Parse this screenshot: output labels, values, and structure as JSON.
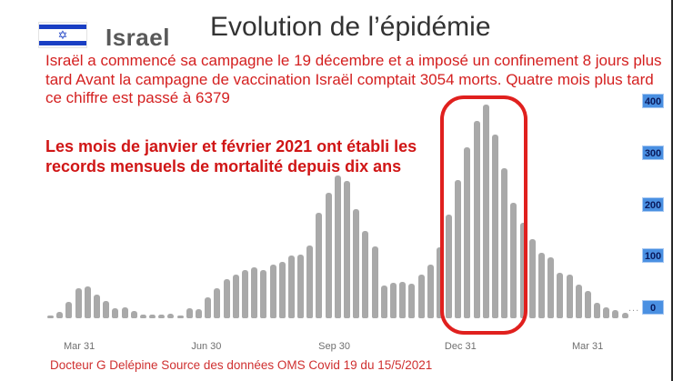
{
  "header": {
    "country_label": "Israel",
    "flag": "israel-flag",
    "title": "Evolution de l’épidémie"
  },
  "intro_paragraph": "Israël a commencé sa campagne le 19 décembre et a imposé un confinement 8 jours plus tard Avant la campagne de vaccination Israël comptait 3054 morts. Quatre mois plus tard ce chiffre est passé à  6379",
  "highlight_statement": "Les mois de janvier et février 2021 ont établi les records mensuels de mortalité depuis dix ans",
  "footer": {
    "credit": "Docteur G Delépine  Source des données OMS Covid 19 du 15/5/2021"
  },
  "colors": {
    "text_red": "#d42020",
    "bar_gray": "#a9a9a9",
    "flag_blue": "#1a3fc4",
    "axis_label_gray": "#6f6f6f",
    "y_label_highlight_bg": "#4a90e2",
    "y_label_text": "#0a1a5c",
    "highlight_rect_red": "#e0201e",
    "title_gray": "#333333"
  },
  "chart_data": {
    "type": "bar",
    "title": "",
    "xlabel": "",
    "ylabel": "",
    "values": [
      5,
      12,
      32,
      58,
      61,
      45,
      33,
      19,
      21,
      14,
      7,
      7,
      7,
      8,
      5,
      20,
      18,
      40,
      58,
      75,
      84,
      93,
      98,
      93,
      104,
      109,
      121,
      123,
      140,
      203,
      243,
      275,
      265,
      211,
      168,
      139,
      63,
      68,
      70,
      67,
      84,
      104,
      136,
      200,
      267,
      330,
      381,
      412,
      354,
      289,
      223,
      184,
      152,
      126,
      117,
      88,
      84,
      65,
      53,
      30,
      21,
      16,
      11
    ],
    "x_tick_labels": [
      "Mar 31",
      "Jun 30",
      "Sep 30",
      "Dec 31",
      "Mar 31"
    ],
    "x_tick_week_indices": [
      3.1,
      16.8,
      30.6,
      44.2,
      57.9
    ],
    "y_ticks": [
      0,
      100,
      200,
      300,
      400
    ],
    "y_tick_labels": [
      "0",
      "100",
      "200",
      "300",
      "400"
    ],
    "ylim": [
      0,
      430
    ],
    "grid": "off",
    "legend": "none",
    "bar_color": "#a9a9a9",
    "trailing_ellipsis": "...",
    "annotation": {
      "type": "highlight-rect",
      "color": "#e0201e",
      "covers_week_indices": [
        43,
        51
      ],
      "meaning": "red rounded rectangle circling the Dec 31 / Jan 2021 mortality peak"
    },
    "flag_star_glyph": "✡"
  }
}
